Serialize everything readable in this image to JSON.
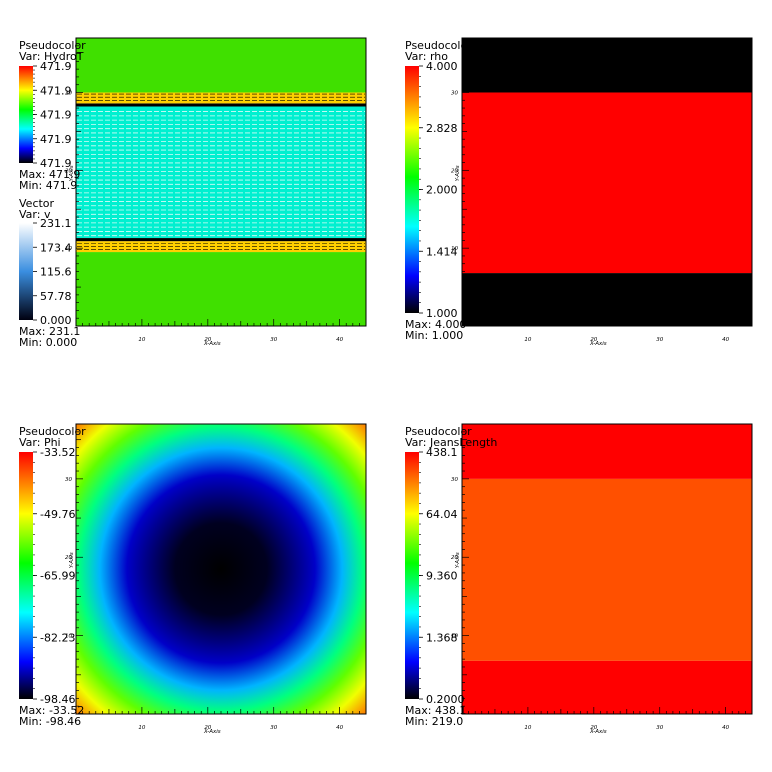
{
  "chart_data": [
    {
      "type": "heatmap",
      "title": "Pseudocolor",
      "var_label": "Var: HydroT",
      "colorbar": {
        "ticks": [
          "471.9",
          "471.9",
          "471.9",
          "471.9",
          "471.9"
        ],
        "max_label": "Max: 471.9",
        "min_label": "Min: 471.9",
        "scheme": "rainbow"
      },
      "xlabel": "X-Axis",
      "ylabel": "Y-Axis",
      "xlim": [
        0,
        44
      ],
      "ylim": [
        0,
        37
      ],
      "xticks": [
        "10",
        "20",
        "30",
        "40"
      ],
      "yticks": [
        "10",
        "20",
        "30"
      ],
      "field": {
        "kind": "bands",
        "bands": [
          {
            "y0": 0,
            "y1": 9.5,
            "color": "#40e000"
          },
          {
            "y0": 9.5,
            "y1": 10.9,
            "color": "#ffd000"
          },
          {
            "y0": 10.9,
            "y1": 11.3,
            "color": "#000000"
          },
          {
            "y0": 11.3,
            "y1": 28.2,
            "color": "#00f0d0"
          },
          {
            "y0": 28.2,
            "y1": 28.6,
            "color": "#000000"
          },
          {
            "y0": 28.6,
            "y1": 30.0,
            "color": "#ffd000"
          },
          {
            "y0": 30.0,
            "y1": 37,
            "color": "#40e000"
          }
        ]
      },
      "vector": {
        "title": "Vector",
        "var_label": "Var: v",
        "ticks": [
          "231.1",
          "173.4",
          "115.6",
          "57.78",
          "0.000"
        ],
        "max_label": "Max: 231.1",
        "min_label": "Min: 0.000"
      }
    },
    {
      "type": "heatmap",
      "title": "Pseudocolor",
      "var_label": "Var: rho",
      "colorbar": {
        "ticks": [
          "4.000",
          "2.828",
          "2.000",
          "1.414",
          "1.000"
        ],
        "max_label": "Max: 4.000",
        "min_label": "Min: 1.000",
        "scheme": "rainbow"
      },
      "xlabel": "X-Axis",
      "ylabel": "Y-Axis",
      "xlim": [
        0,
        44
      ],
      "ylim": [
        0,
        37
      ],
      "xticks": [
        "10",
        "20",
        "30",
        "40"
      ],
      "yticks": [
        "10",
        "20",
        "30"
      ],
      "field": {
        "kind": "bands",
        "bands": [
          {
            "y0": 0,
            "y1": 6.8,
            "color": "#000000"
          },
          {
            "y0": 6.8,
            "y1": 30.0,
            "color": "#ff0000"
          },
          {
            "y0": 30.0,
            "y1": 37,
            "color": "#000000"
          }
        ]
      }
    },
    {
      "type": "heatmap",
      "title": "Pseudocolor",
      "var_label": "Var: Phi",
      "colorbar": {
        "ticks": [
          "-33.52",
          "-49.76",
          "-65.99",
          "-82.23",
          "-98.46"
        ],
        "max_label": "Max: -33.52",
        "min_label": "Min: -98.46",
        "scheme": "rainbow"
      },
      "xlabel": "X-Axis",
      "ylabel": "Y-Axis",
      "xlim": [
        0,
        44
      ],
      "ylim": [
        0,
        37
      ],
      "xticks": [
        "10",
        "20",
        "30",
        "40"
      ],
      "yticks": [
        "10",
        "20",
        "30"
      ],
      "field": {
        "kind": "potential",
        "center": [
          22,
          18.5
        ],
        "min": -98.46,
        "max": -33.52
      }
    },
    {
      "type": "heatmap",
      "title": "Pseudocolor",
      "var_label": "Var: JeansLength",
      "colorbar": {
        "ticks": [
          "438.1",
          "64.04",
          "9.360",
          "1.368",
          "0.2000"
        ],
        "max_label": "Max: 438.1",
        "min_label": "Min: 219.0",
        "scheme": "rainbow"
      },
      "xlabel": "X-Axis",
      "ylabel": "Y-Axis",
      "xlim": [
        0,
        44
      ],
      "ylim": [
        0,
        37
      ],
      "xticks": [
        "10",
        "20",
        "30",
        "40"
      ],
      "yticks": [
        "10",
        "20",
        "30"
      ],
      "field": {
        "kind": "bands",
        "bands": [
          {
            "y0": 0,
            "y1": 6.8,
            "color": "#ff0000"
          },
          {
            "y0": 6.8,
            "y1": 30.0,
            "color": "#ff5000"
          },
          {
            "y0": 30.0,
            "y1": 37,
            "color": "#ff0000"
          }
        ]
      }
    }
  ]
}
